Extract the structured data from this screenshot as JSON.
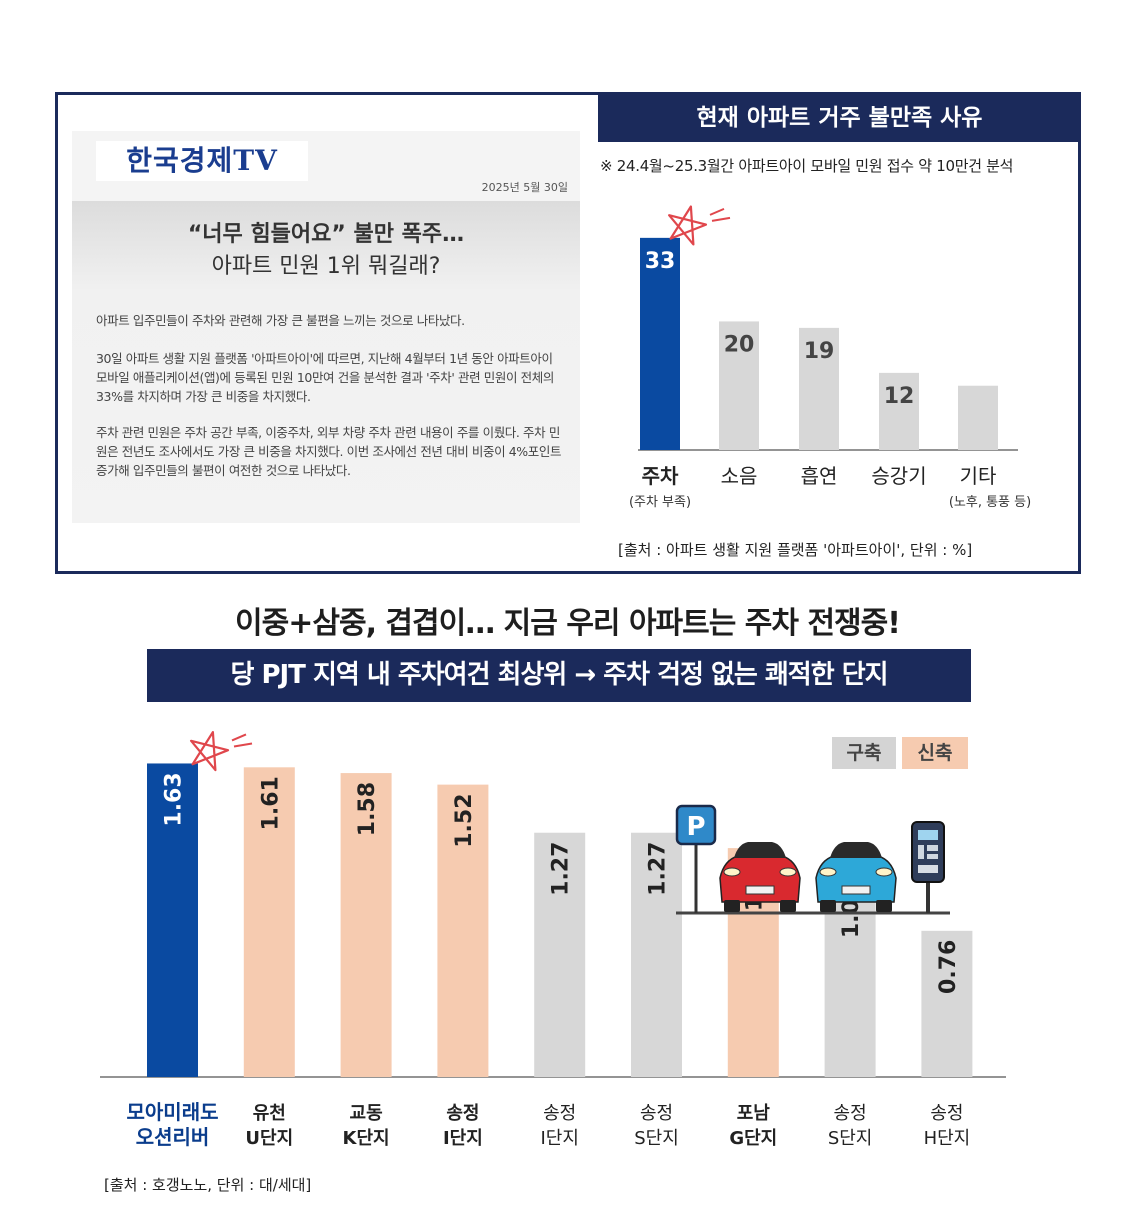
{
  "article": {
    "logo": "한국경제TV",
    "date": "2025년 5월 30일",
    "headline_line1": "“너무 힘들어요” 불만 폭주…",
    "headline_line2": "아파트 민원 1위 뭐길래?",
    "paragraph1": "아파트 입주민들이 주차와 관련해 가장 큰 불편을 느끼는 것으로 나타났다.",
    "paragraph2": "30일 아파트 생활 지원 플랫폼 '아파트아이'에 따르면, 지난해 4월부터 1년 동안 아파트아이 모바일 애플리케이션(앱)에 등록된 민원 10만여 건을 분석한 결과 '주차' 관련 민원이 전체의 33%를 차지하며 가장 큰 비중을 차지했다.",
    "paragraph3": "주차 관련 민원은 주차 공간 부족, 이중주차, 외부 차량 주차 관련 내용이 주를 이뤘다. 주차 민원은 전년도 조사에서도 가장 큰 비중을 차지했다. 이번 조사에선 전년 대비 비중이 4%포인트 증가해 입주민들의 불편이 여전한 것으로 나타났다."
  },
  "chart1_title": "현재 아파트 거주 불만족 사유",
  "chart1_note": "※ 24.4월~25.3월간 아파트아이 모바일 민원 접수 약 10만건 분석",
  "chart1_source": "[출처 : 아파트 생활 지원 플랫폼 '아파트아이', 단위 : %]",
  "big_title": "이중+삼중, 겹겹이… 지금 우리 아파트는 주차 전쟁중!",
  "banner": "당 PJT 지역 내 주차여건 최상위 → 주차 걱정 없는 쾌적한 단지",
  "legend": {
    "old": "구축",
    "new": "신축"
  },
  "chart2_source": "[출처 : 호갱노노, 단위 : 대/세대]",
  "colors": {
    "highlight": "#0a4aa1",
    "gray_bar": "#d7d7d7",
    "new_bar": "#f6cbb0",
    "navy": "#1b2a5b",
    "star": "#e0474c"
  },
  "icons": [
    "parking-sign-icon",
    "red-car-icon",
    "blue-car-icon",
    "parking-meter-icon",
    "star-mark-icon"
  ],
  "chart_data": [
    {
      "type": "bar",
      "title": "현재 아파트 거주 불만족 사유",
      "categories": [
        "주차",
        "소음",
        "흡연",
        "승강기",
        "기타"
      ],
      "sublabels": [
        "(주차 부족)",
        "",
        "",
        "",
        "(노후, 통풍 등)"
      ],
      "values": [
        33,
        20,
        19,
        12,
        10
      ],
      "value_labels": [
        "33",
        "20",
        "19",
        "12",
        ""
      ],
      "highlight_index": 0,
      "ylim": [
        0,
        35
      ],
      "unit": "%"
    },
    {
      "type": "bar",
      "categories": [
        "모아미래도 오션리버",
        "유천 U단지",
        "교동 K단지",
        "송정 I단지",
        "송정 I단지",
        "송정 S단지",
        "포남 G단지",
        "송정 S단지",
        "송정 H단지"
      ],
      "label_line1": [
        "모아미래도",
        "유천",
        "교동",
        "송정",
        "송정",
        "송정",
        "포남",
        "송정",
        "송정"
      ],
      "label_line2": [
        "오션리버",
        "U단지",
        "K단지",
        "I단지",
        "I단지",
        "S단지",
        "G단지",
        "S단지",
        "H단지"
      ],
      "values": [
        1.63,
        1.61,
        1.58,
        1.52,
        1.27,
        1.27,
        1.19,
        1.05,
        0.76
      ],
      "value_labels": [
        "1.63",
        "1.61",
        "1.58",
        "1.52",
        "1.27",
        "1.27",
        "1.19",
        "1.05",
        "0.76"
      ],
      "kind": [
        "highlight",
        "new",
        "new",
        "new",
        "old",
        "old",
        "new",
        "old",
        "old"
      ],
      "label_bold": [
        true,
        true,
        true,
        true,
        false,
        false,
        true,
        false,
        false
      ],
      "ylim": [
        0,
        1.7
      ],
      "unit": "대/세대"
    }
  ]
}
